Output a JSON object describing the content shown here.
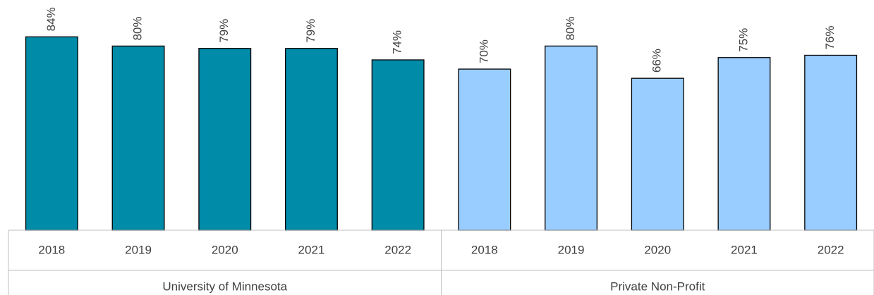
{
  "chart_data": {
    "type": "bar",
    "ylim": [
      0,
      100
    ],
    "groups": [
      {
        "name": "University of Minnesota",
        "color": "#008ba8",
        "categories": [
          "2018",
          "2019",
          "2020",
          "2021",
          "2022"
        ],
        "values": [
          84,
          80,
          79,
          79,
          74
        ],
        "value_labels": [
          "84%",
          "80%",
          "79%",
          "79%",
          "74%"
        ]
      },
      {
        "name": "Private Non-Profit",
        "color": "#99ccff",
        "categories": [
          "2018",
          "2019",
          "2020",
          "2021",
          "2022"
        ],
        "values": [
          70,
          80,
          66,
          75,
          76
        ],
        "value_labels": [
          "70%",
          "80%",
          "66%",
          "75%",
          "76%"
        ]
      }
    ]
  }
}
